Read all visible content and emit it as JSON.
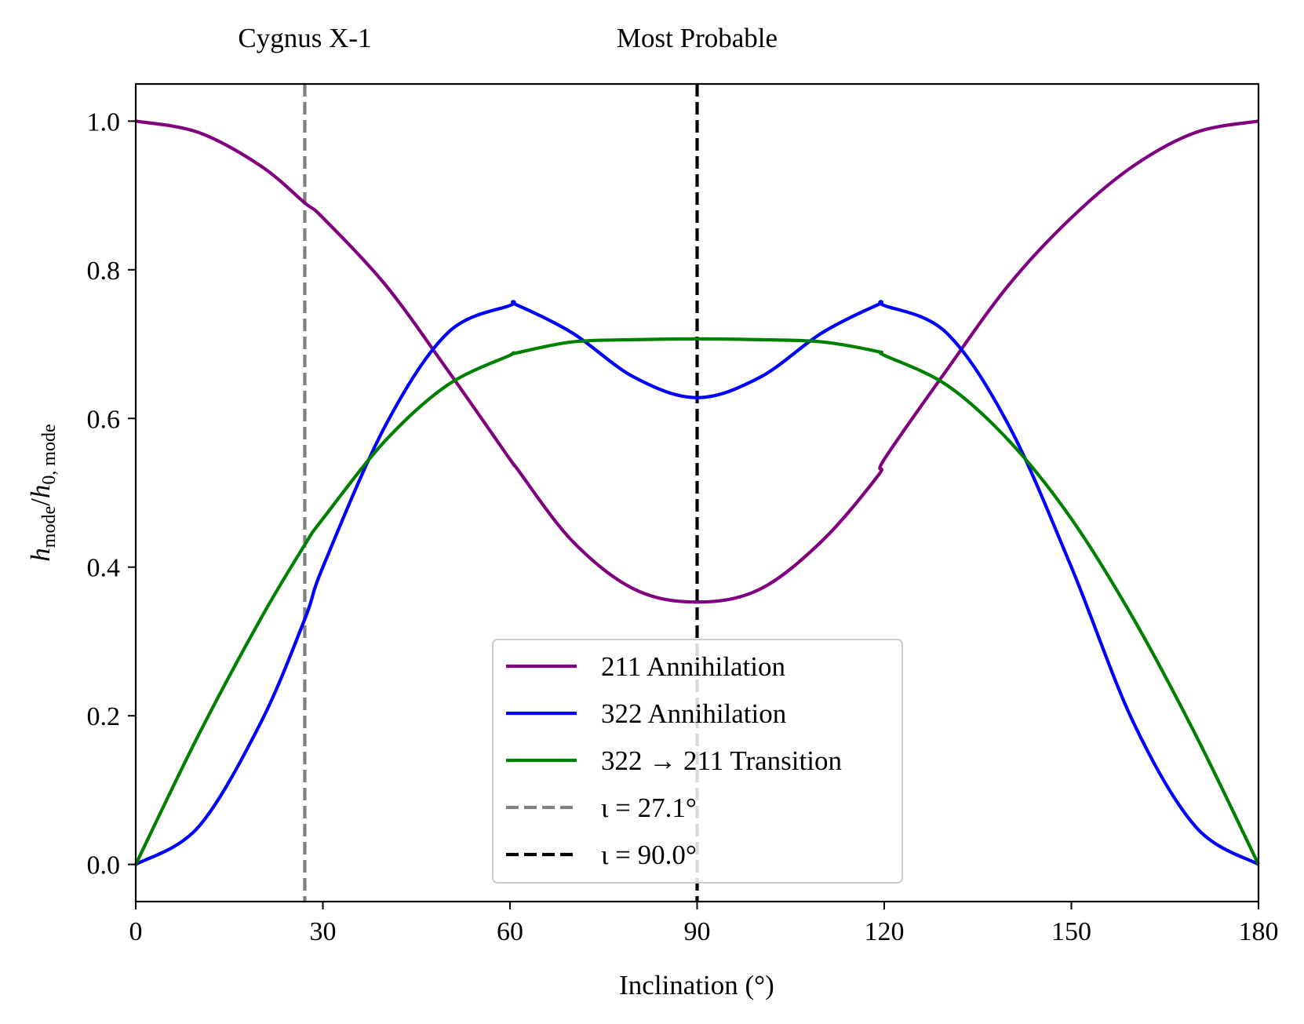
{
  "chart_data": {
    "type": "line",
    "title": "",
    "xlabel": "Inclination (°)",
    "ylabel": {
      "main": "h",
      "main_sub": "mode",
      "denom": "h",
      "denom_sub": "0, mode"
    },
    "xlim": [
      0,
      180
    ],
    "ylim": [
      -0.05,
      1.05
    ],
    "xticks": [
      0,
      30,
      60,
      90,
      120,
      150,
      180
    ],
    "xtick_labels": [
      "0",
      "30",
      "60",
      "90",
      "120",
      "150",
      "180"
    ],
    "yticks": [
      0.0,
      0.2,
      0.4,
      0.6,
      0.8,
      1.0
    ],
    "ytick_labels": [
      "0.0",
      "0.2",
      "0.4",
      "0.6",
      "0.8",
      "1.0"
    ],
    "grid": false,
    "legend_position": "lower-center",
    "x": [
      0,
      10,
      20,
      27.1,
      30,
      40,
      50,
      60,
      61,
      70,
      80,
      90,
      100,
      110,
      119,
      120,
      130,
      140,
      150,
      160,
      170,
      180
    ],
    "series": [
      {
        "name": "211 Annihilation",
        "color": "#800080",
        "values": [
          1.0,
          0.985,
          0.94,
          0.89,
          0.87,
          0.78,
          0.665,
          0.545,
          0.534,
          0.435,
          0.37,
          0.353,
          0.37,
          0.435,
          0.523,
          0.545,
          0.665,
          0.78,
          0.87,
          0.94,
          0.985,
          1.0
        ]
      },
      {
        "name": "322 Annihilation",
        "color": "#0000ff",
        "values": [
          0.0,
          0.05,
          0.19,
          0.33,
          0.4,
          0.59,
          0.715,
          0.752,
          0.753,
          0.715,
          0.655,
          0.628,
          0.655,
          0.715,
          0.753,
          0.752,
          0.715,
          0.59,
          0.4,
          0.19,
          0.05,
          0.0
        ]
      },
      {
        "name": "322 → 211 Transition",
        "color": "#008000",
        "values": [
          0.0,
          0.173,
          0.33,
          0.43,
          0.465,
          0.57,
          0.645,
          0.685,
          0.688,
          0.703,
          0.706,
          0.707,
          0.706,
          0.703,
          0.69,
          0.685,
          0.645,
          0.57,
          0.465,
          0.33,
          0.173,
          0.0
        ]
      }
    ],
    "vlines": [
      {
        "x": 27.1,
        "color": "#808080",
        "style": "dashed",
        "legend": "ι = 27.1°",
        "top_label": "Cygnus X-1"
      },
      {
        "x": 90.0,
        "color": "#000000",
        "style": "dashed",
        "legend": "ι = 90.0°",
        "top_label": "Most Probable"
      }
    ]
  }
}
